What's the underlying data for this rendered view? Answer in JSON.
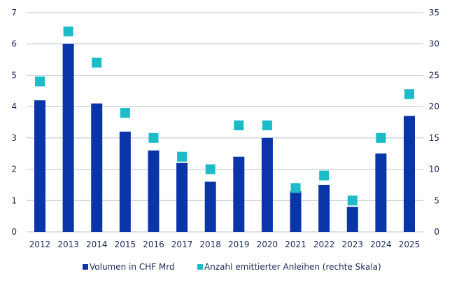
{
  "chart_data": {
    "type": "bar",
    "categories": [
      "2012",
      "2013",
      "2014",
      "2015",
      "2016",
      "2017",
      "2018",
      "2019",
      "2020",
      "2021",
      "2022",
      "2023",
      "2024",
      "2025"
    ],
    "series": [
      {
        "name": "Volumen in CHF Mrd",
        "type": "bar",
        "axis": "left",
        "color": "#0A35A9",
        "values": [
          4.2,
          6.0,
          4.1,
          3.2,
          2.6,
          2.2,
          1.6,
          2.4,
          3.0,
          1.3,
          1.5,
          0.8,
          2.5,
          3.7
        ]
      },
      {
        "name": "Anzahl emittierter Anleihen (rechte Skala)",
        "type": "scatter",
        "marker": "square",
        "axis": "right",
        "color": "#1BBCC8",
        "values": [
          24,
          32,
          27,
          19,
          15,
          12,
          10,
          17,
          17,
          7,
          9,
          5,
          15,
          22
        ]
      }
    ],
    "ylim": [
      0,
      7
    ],
    "yticks": [
      "0",
      "1",
      "2",
      "3",
      "4",
      "5",
      "6",
      "7"
    ],
    "y2lim": [
      0,
      35
    ],
    "y2ticks": [
      "0",
      "5",
      "10",
      "15",
      "20",
      "25",
      "30",
      "35"
    ],
    "grid": true,
    "legend": "bottom",
    "gridline_color": "#B8C2D6"
  }
}
